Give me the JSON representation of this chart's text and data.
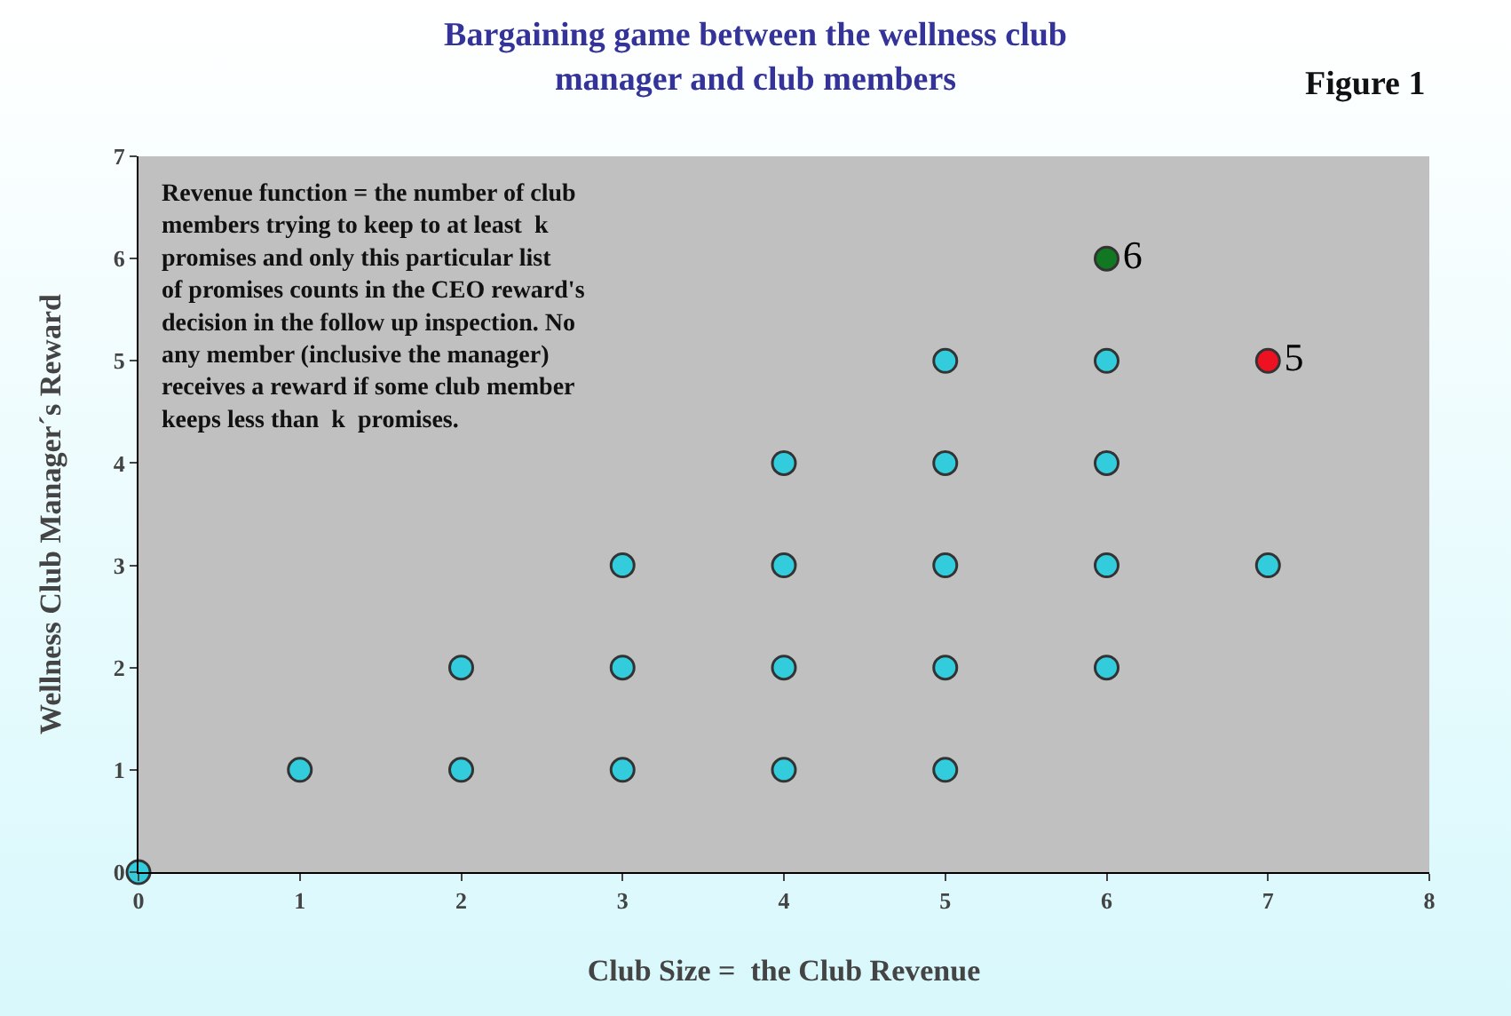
{
  "chart_data": {
    "type": "scatter",
    "title": "Bargaining game between the wellness club manager and club members",
    "xlabel": "Club Size =  the Club Revenue",
    "ylabel": "Wellness Club Manager´s Reward",
    "annotations": [
      "Revenue function = the number of club members trying to keep to at least  k  promises and only this particular list of promises counts in the CEO reward's decision in the follow up inspection. No any member (inclusive the manager) receives a reward if some club member keeps less than  k  promises.",
      "Figure 1"
    ],
    "series": [
      {
        "color": "#33ccdd",
        "x": [
          0,
          1,
          2,
          2,
          3,
          3,
          3,
          4,
          4,
          4,
          4,
          5,
          5,
          5,
          5,
          5,
          6,
          6,
          6,
          6,
          7
        ],
        "values": [
          0,
          1,
          1,
          2,
          1,
          2,
          3,
          1,
          2,
          3,
          4,
          1,
          2,
          3,
          4,
          5,
          2,
          3,
          4,
          5,
          3
        ]
      },
      {
        "color": "#117722",
        "x": [
          6
        ],
        "values": [
          6
        ],
        "value_labels": [
          "6"
        ]
      },
      {
        "color": "#ee1122",
        "x": [
          7
        ],
        "values": [
          5
        ],
        "value_labels": [
          "5"
        ]
      }
    ],
    "xlim": [
      0,
      8
    ],
    "xticks": [
      0,
      1,
      2,
      3,
      4,
      5,
      6,
      7,
      8
    ],
    "ylim": [
      0,
      7
    ],
    "yticks": [
      0,
      1,
      2,
      3,
      4,
      5,
      6,
      7
    ],
    "marker": "circle"
  }
}
